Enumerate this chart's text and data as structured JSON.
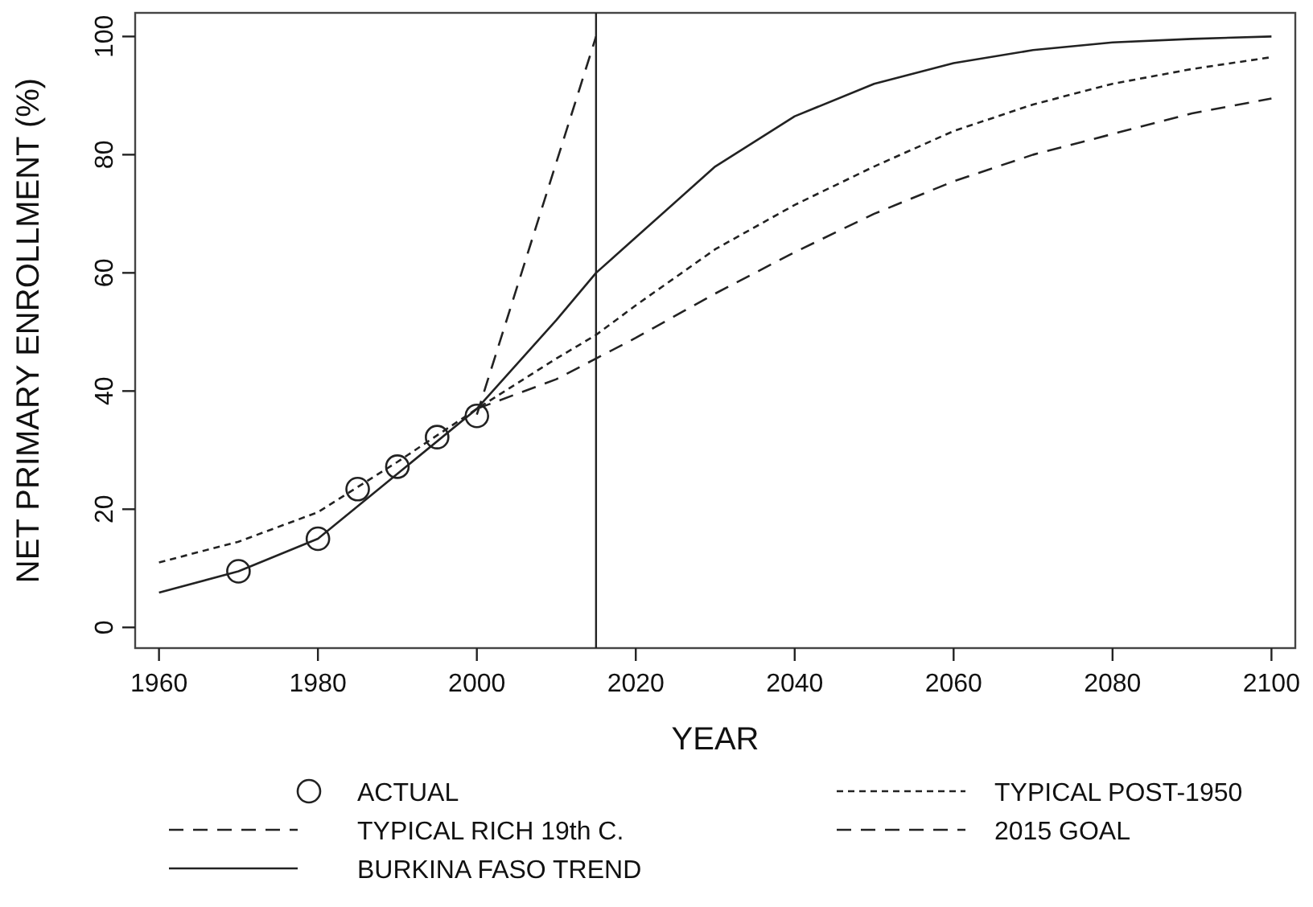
{
  "chart_data": {
    "type": "line",
    "xlabel": "YEAR",
    "ylabel": "NET PRIMARY ENROLLMENT (%)",
    "xlim": [
      1957,
      2103
    ],
    "ylim": [
      -3.5,
      104
    ],
    "xticks": [
      1960,
      1980,
      2000,
      2020,
      2040,
      2060,
      2080,
      2100
    ],
    "yticks": [
      0,
      20,
      40,
      60,
      80,
      100
    ],
    "grid": false,
    "legend": "bottom",
    "marker": "none",
    "series": [
      {
        "name": "ACTUAL",
        "type": "scatter",
        "marker": "circle",
        "color": "#222222",
        "x": [
          1970,
          1980,
          1985,
          1990,
          1995,
          2000
        ],
        "values": [
          9.5,
          15,
          23.4,
          27.2,
          32.2,
          35.8
        ]
      },
      {
        "name": "TYPICAL RICH 19th C.",
        "line_style": "dashed",
        "color": "#222222",
        "x": [
          2000,
          2010,
          2015,
          2020,
          2030,
          2040,
          2050,
          2060,
          2070,
          2080,
          2090,
          2100
        ],
        "values": [
          37,
          42,
          45.5,
          49,
          56.5,
          63.5,
          70,
          75.5,
          80,
          83.5,
          87,
          89.5
        ]
      },
      {
        "name": "BURKINA FASO TREND",
        "line_style": "solid",
        "color": "#222222",
        "x": [
          1960,
          1970,
          1980,
          1990,
          2000,
          2010,
          2015,
          2020,
          2030,
          2040,
          2050,
          2060,
          2070,
          2080,
          2090,
          2100
        ],
        "values": [
          5.9,
          9.5,
          15,
          26,
          37,
          52,
          60,
          66,
          78,
          86.5,
          92,
          95.5,
          97.7,
          99,
          99.6,
          100
        ]
      },
      {
        "name": "TYPICAL POST-1950",
        "line_style": "dotted",
        "color": "#222222",
        "x": [
          1960,
          1970,
          1980,
          1990,
          2000,
          2010,
          2015,
          2020,
          2030,
          2040,
          2050,
          2060,
          2070,
          2080,
          2090,
          2100
        ],
        "values": [
          11,
          14.5,
          19.5,
          28,
          37,
          45.5,
          49.5,
          54.5,
          64,
          71.5,
          78,
          84,
          88.5,
          92,
          94.5,
          96.5
        ]
      },
      {
        "name": "2015 GOAL",
        "line_style": "dashed",
        "color": "#222222",
        "x": [
          2000,
          2015
        ],
        "values": [
          36,
          100
        ]
      }
    ],
    "ref_lines": [
      {
        "axis": "x",
        "value": 2015,
        "color": "#222222"
      }
    ]
  }
}
